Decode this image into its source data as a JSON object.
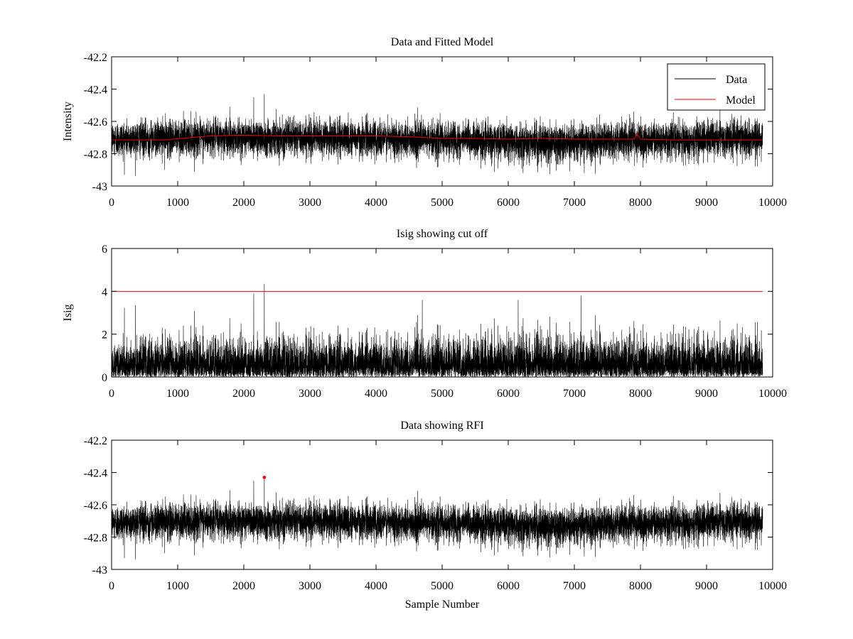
{
  "chart_data": [
    {
      "type": "line",
      "title": "Data and Fitted Model",
      "xlabel": "",
      "ylabel": "Intensity",
      "xlim": [
        0,
        10000
      ],
      "ylim": [
        -43,
        -42.2
      ],
      "xticks": [
        0,
        1000,
        2000,
        3000,
        4000,
        5000,
        6000,
        7000,
        8000,
        9000,
        10000
      ],
      "xtick_labels": [
        "0",
        "1000",
        "2000",
        "3000",
        "4000",
        "5000",
        "6000",
        "7000",
        "8000",
        "9000",
        "10000"
      ],
      "yticks": [
        -43,
        -42.8,
        -42.6,
        -42.4,
        -42.2
      ],
      "ytick_labels": [
        "-43",
        "-42.8",
        "-42.6",
        "-42.4",
        "-42.2"
      ],
      "grid": false,
      "legend": {
        "position": "top-right",
        "entries": [
          "Data",
          "Model"
        ]
      },
      "series": [
        {
          "name": "Data",
          "color": "#000000",
          "kind": "noise",
          "n_samples": 9850,
          "center": -42.71,
          "spread": 0.055,
          "spikes": [
            [
              2150,
              -42.45
            ],
            [
              2310,
              -42.43
            ],
            [
              7150,
              -42.92
            ],
            [
              800,
              -42.9
            ]
          ]
        },
        {
          "name": "Model",
          "color": "#ff0000",
          "x": [
            0,
            800,
            1200,
            1500,
            2000,
            2500,
            3000,
            3500,
            4000,
            4500,
            5000,
            5500,
            6000,
            6500,
            7000,
            7500,
            7900,
            7950,
            8000,
            8500,
            9000,
            9500,
            9850
          ],
          "y": [
            -42.715,
            -42.715,
            -42.7,
            -42.69,
            -42.685,
            -42.69,
            -42.69,
            -42.69,
            -42.69,
            -42.695,
            -42.705,
            -42.705,
            -42.71,
            -42.705,
            -42.71,
            -42.71,
            -42.71,
            -42.68,
            -42.71,
            -42.715,
            -42.715,
            -42.715,
            -42.715
          ]
        }
      ]
    },
    {
      "type": "line",
      "title": "Isig showing cut off",
      "xlabel": "",
      "ylabel": "Isig",
      "xlim": [
        0,
        10000
      ],
      "ylim": [
        0,
        6
      ],
      "xticks": [
        0,
        1000,
        2000,
        3000,
        4000,
        5000,
        6000,
        7000,
        8000,
        9000,
        10000
      ],
      "xtick_labels": [
        "0",
        "1000",
        "2000",
        "3000",
        "4000",
        "5000",
        "6000",
        "7000",
        "8000",
        "9000",
        "10000"
      ],
      "yticks": [
        0,
        2,
        4,
        6
      ],
      "ytick_labels": [
        "0",
        "2",
        "4",
        "6"
      ],
      "grid": false,
      "series": [
        {
          "name": "Isig",
          "color": "#000000",
          "kind": "abs-noise",
          "n_samples": 9850,
          "scale": 0.8,
          "spikes": [
            [
              2150,
              3.9
            ],
            [
              2310,
              4.35
            ],
            [
              7100,
              3.8
            ],
            [
              6150,
              3.6
            ],
            [
              4700,
              3.6
            ]
          ]
        },
        {
          "name": "Cut off",
          "color": "#ff0000",
          "x": [
            0,
            9850
          ],
          "y": [
            4,
            4
          ]
        }
      ]
    },
    {
      "type": "line",
      "title": "Data showing RFI",
      "xlabel": "Sample Number",
      "ylabel": "",
      "xlim": [
        0,
        10000
      ],
      "ylim": [
        -43,
        -42.2
      ],
      "xticks": [
        0,
        1000,
        2000,
        3000,
        4000,
        5000,
        6000,
        7000,
        8000,
        9000,
        10000
      ],
      "xtick_labels": [
        "0",
        "1000",
        "2000",
        "3000",
        "4000",
        "5000",
        "6000",
        "7000",
        "8000",
        "9000",
        "10000"
      ],
      "yticks": [
        -43,
        -42.8,
        -42.6,
        -42.4,
        -42.2
      ],
      "ytick_labels": [
        "-43",
        "-42.8",
        "-42.6",
        "-42.4",
        "-42.2"
      ],
      "grid": false,
      "series": [
        {
          "name": "Data",
          "color": "#000000",
          "kind": "noise",
          "n_samples": 9850,
          "center": -42.71,
          "spread": 0.055,
          "spikes": [
            [
              2150,
              -42.45
            ],
            [
              2310,
              -42.43
            ],
            [
              7150,
              -42.92
            ],
            [
              800,
              -42.9
            ]
          ]
        },
        {
          "name": "RFI",
          "color": "#ff0000",
          "kind": "markers",
          "x": [
            2310
          ],
          "y": [
            -42.43
          ]
        }
      ]
    }
  ]
}
